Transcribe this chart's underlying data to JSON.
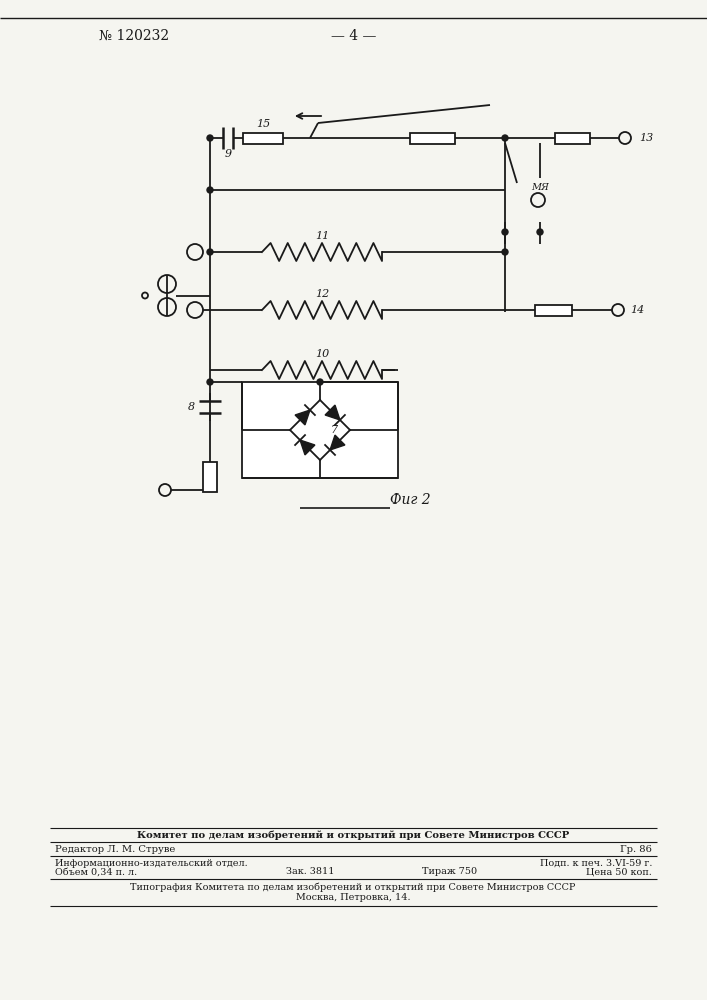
{
  "title_left": "№ 120232",
  "title_center": "— 4 —",
  "fig_label": "Фиг 2",
  "background_color": "#f5f5f0",
  "line_color": "#1a1a1a",
  "lw": 1.3,
  "footer": {
    "line1": "Комитет по делам изобретений и открытий при Совете Министров СССР",
    "line2_left": "Редактор Л. М. Струве",
    "line2_right": "Гр. 86",
    "line3_left": "Информационно-издательский отдел.",
    "line3_right": "Подп. к печ. 3.VI-59 г.",
    "line4_left": "Объем 0,34 п. л.",
    "line4_mid1": "Зак. 3811",
    "line4_mid2": "Тираж 750",
    "line4_right": "Цена 50 коп.",
    "line5": "Типография Комитета по делам изобретений и открытий при Совете Министров СССР",
    "line6": "Москва, Петровка, 14."
  }
}
